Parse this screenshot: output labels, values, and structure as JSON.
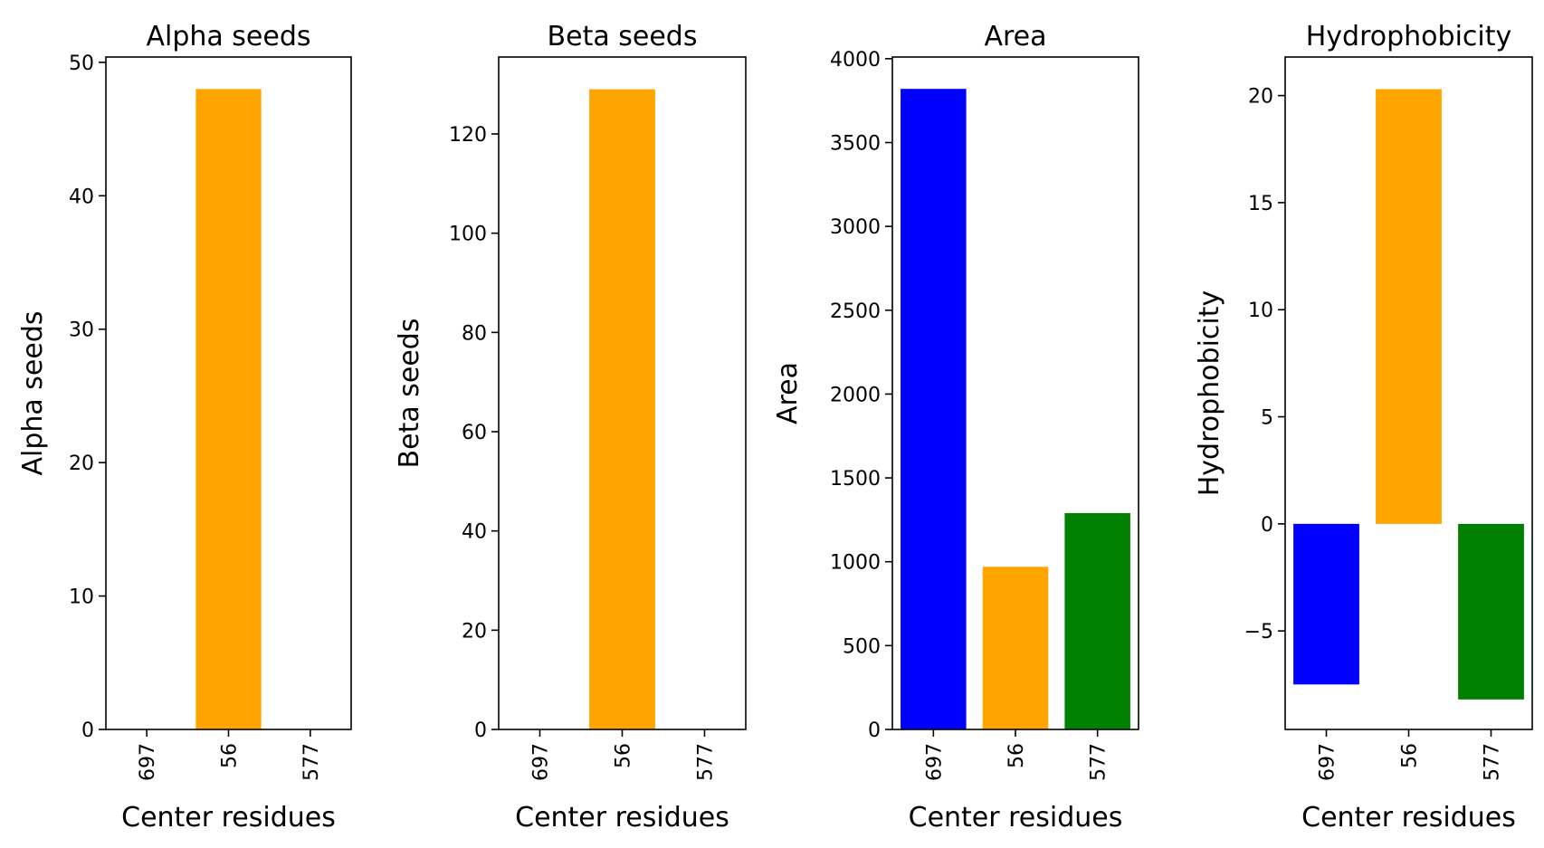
{
  "chart_data": [
    {
      "type": "bar",
      "title": "Alpha seeds",
      "xlabel": "Center residues",
      "ylabel": "Alpha seeds",
      "categories": [
        "697",
        "56",
        "577"
      ],
      "values": [
        0,
        48,
        0
      ],
      "colors": [
        "#0000ff",
        "#ffa500",
        "#008000"
      ],
      "ylim": [
        0,
        50.4
      ],
      "yticks": [
        0,
        10,
        20,
        30,
        40,
        50
      ],
      "grid": false
    },
    {
      "type": "bar",
      "title": "Beta seeds",
      "xlabel": "Center residues",
      "ylabel": "Beta seeds",
      "categories": [
        "697",
        "56",
        "577"
      ],
      "values": [
        0,
        129,
        0
      ],
      "colors": [
        "#0000ff",
        "#ffa500",
        "#008000"
      ],
      "ylim": [
        0,
        135.5
      ],
      "yticks": [
        0,
        20,
        40,
        60,
        80,
        100,
        120
      ],
      "grid": false
    },
    {
      "type": "bar",
      "title": "Area",
      "xlabel": "Center residues",
      "ylabel": "Area",
      "categories": [
        "697",
        "56",
        "577"
      ],
      "values": [
        3820,
        970,
        1290
      ],
      "colors": [
        "#0000ff",
        "#ffa500",
        "#008000"
      ],
      "ylim": [
        0,
        4010
      ],
      "yticks": [
        0,
        500,
        1000,
        1500,
        2000,
        2500,
        3000,
        3500,
        4000
      ],
      "grid": false
    },
    {
      "type": "bar",
      "title": "Hydrophobicity",
      "xlabel": "Center residues",
      "ylabel": "Hydrophobicity",
      "categories": [
        "697",
        "56",
        "577"
      ],
      "values": [
        -7.5,
        20.3,
        -8.2
      ],
      "colors": [
        "#0000ff",
        "#ffa500",
        "#008000"
      ],
      "ylim": [
        -9.6,
        21.8
      ],
      "yticks": [
        -5,
        0,
        5,
        10,
        15,
        20
      ],
      "tick_labels": [
        "−5",
        "0",
        "5",
        "10",
        "15",
        "20"
      ],
      "grid": false
    }
  ]
}
